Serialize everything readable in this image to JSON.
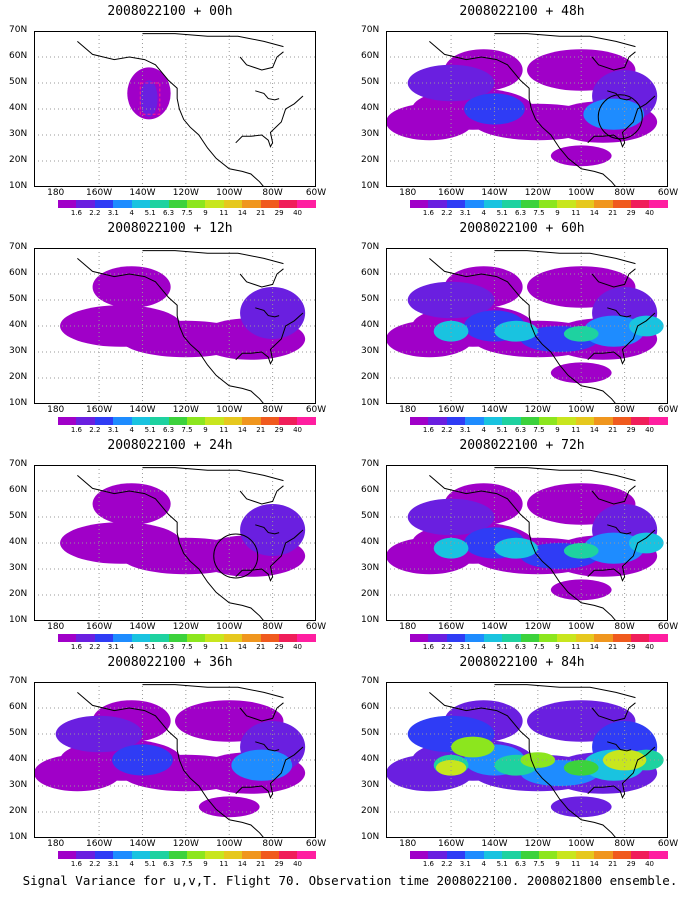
{
  "panels": [
    {
      "title": "2008022100 + 00h",
      "level": 0,
      "ring": false,
      "box": true
    },
    {
      "title": "2008022100 + 48h",
      "level": 2,
      "ring": true,
      "box": false
    },
    {
      "title": "2008022100 + 12h",
      "level": 1,
      "ring": false,
      "box": false
    },
    {
      "title": "2008022100 + 60h",
      "level": 3,
      "ring": false,
      "box": false
    },
    {
      "title": "2008022100 + 24h",
      "level": 1,
      "ring": true,
      "box": false
    },
    {
      "title": "2008022100 + 72h",
      "level": 3,
      "ring": false,
      "box": false
    },
    {
      "title": "2008022100 + 36h",
      "level": 2,
      "ring": false,
      "box": false
    },
    {
      "title": "2008022100 + 84h",
      "level": 4,
      "ring": false,
      "box": false
    }
  ],
  "lat_labels": [
    "70N",
    "60N",
    "50N",
    "40N",
    "30N",
    "20N",
    "10N"
  ],
  "lon_labels": [
    "180",
    "160W",
    "140W",
    "120W",
    "100W",
    "80W",
    "60W"
  ],
  "colorbar": {
    "labels": [
      "1.6",
      "2.2",
      "3.1",
      "4",
      "5.1",
      "6.3",
      "7.5",
      "9",
      "11",
      "14",
      "21",
      "29",
      "40"
    ],
    "colors": [
      "#a000c8",
      "#6a1fe0",
      "#2f3cf5",
      "#1e8cff",
      "#19c3e0",
      "#1ed2a0",
      "#3cd23c",
      "#8ce61e",
      "#c8e61e",
      "#e6c81e",
      "#f0961e",
      "#f05a1e",
      "#f01e5a",
      "#ff1ea0"
    ]
  },
  "caption": "Signal Variance for u,v,T. Flight 70. Observation time 2008022100. 2008021800 ensemble."
}
